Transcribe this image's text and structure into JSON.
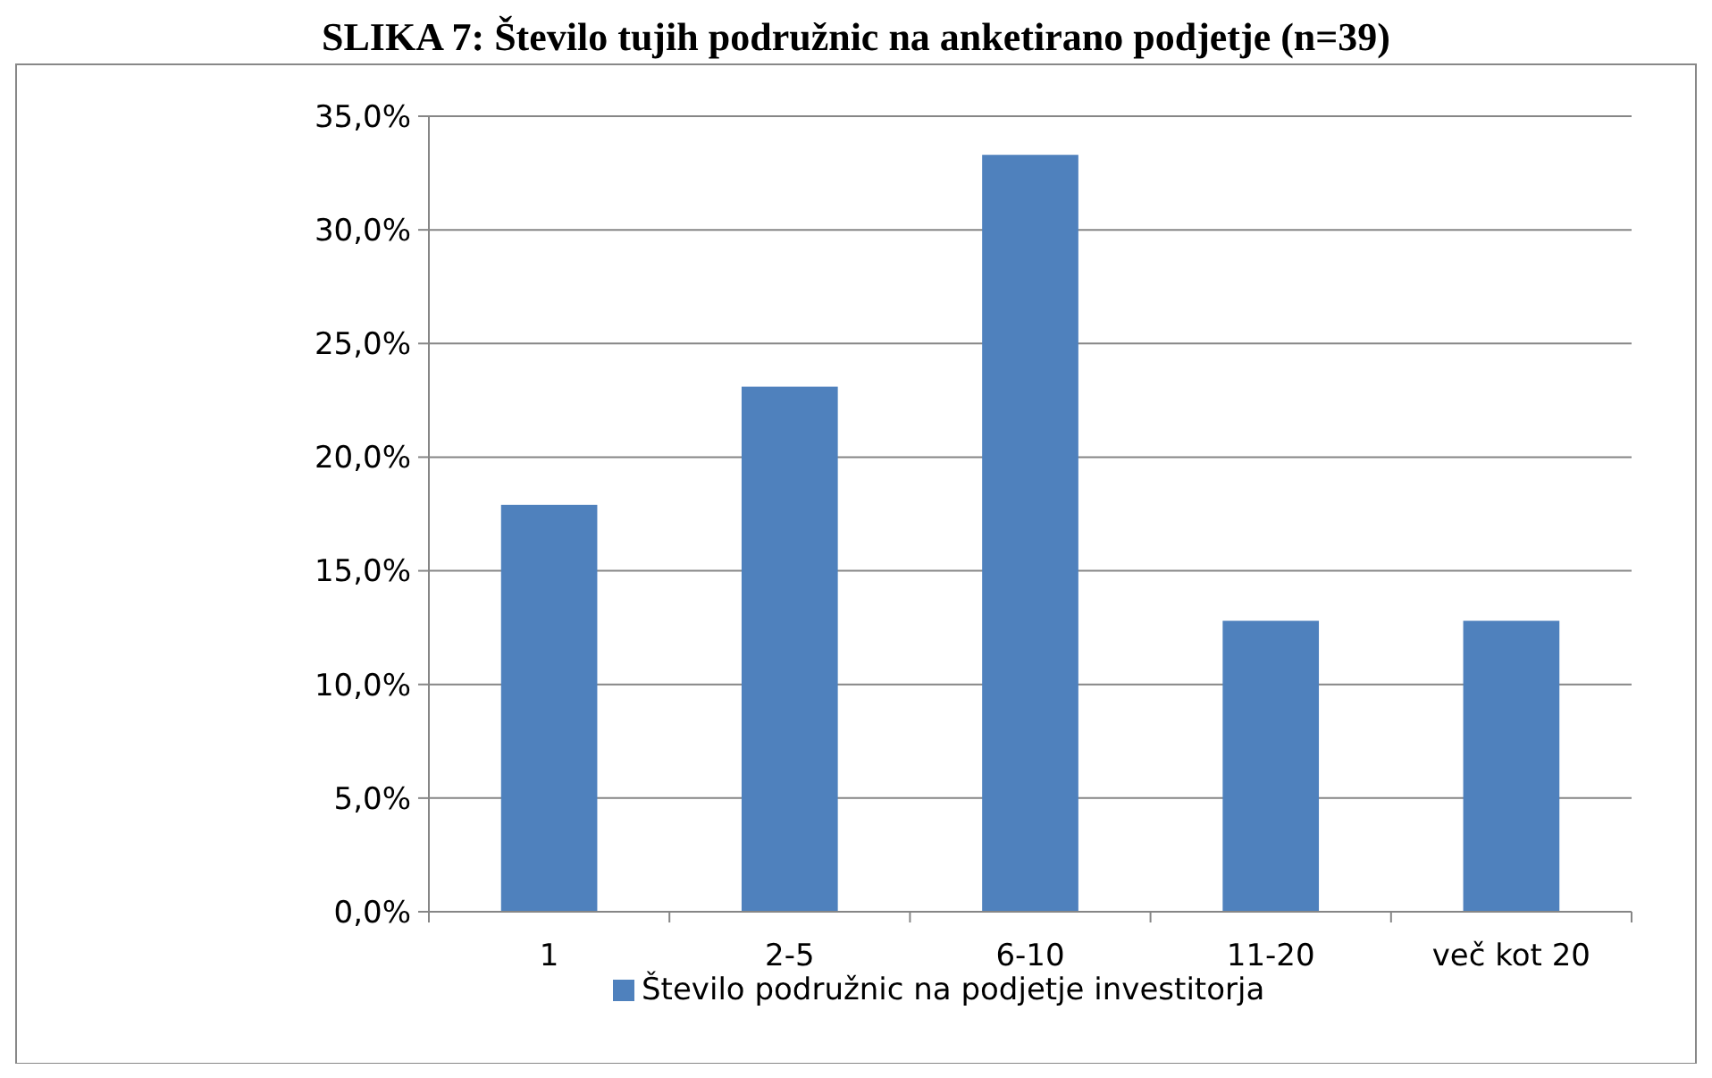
{
  "chart_data": {
    "type": "bar",
    "title": "SLIKA 7: Število tujih podružnic na anketirano podjetje (n=39)",
    "categories": [
      "1",
      "2-5",
      "6-10",
      "11-20",
      "več kot 20"
    ],
    "series": [
      {
        "name": "Število podružnic na podjetje investitorja",
        "color": "#4f81bd",
        "values": [
          17.9,
          23.1,
          33.3,
          12.8,
          12.8
        ]
      }
    ],
    "ylim": [
      0,
      35
    ],
    "yticks": [
      {
        "value": 0,
        "label": "0,0%"
      },
      {
        "value": 5,
        "label": "5,0%"
      },
      {
        "value": 10,
        "label": "10,0%"
      },
      {
        "value": 15,
        "label": "15,0%"
      },
      {
        "value": 20,
        "label": "20,0%"
      },
      {
        "value": 25,
        "label": "25,0%"
      },
      {
        "value": 30,
        "label": "30,0%"
      },
      {
        "value": 35,
        "label": "35,0%"
      }
    ],
    "grid": "y",
    "legend": "bottom"
  }
}
